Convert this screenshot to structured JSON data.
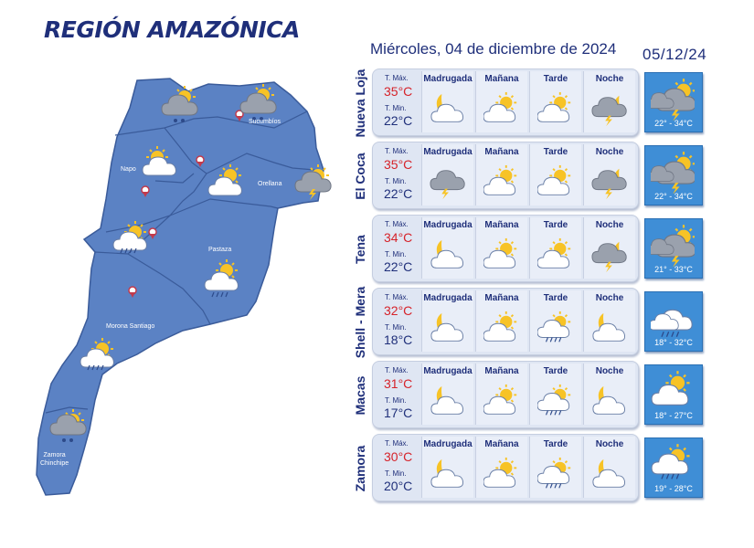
{
  "title": "REGIÓN AMAZÓNICA",
  "date_long": "Miércoles, 04 de diciembre de 2024",
  "date_short": "05/12/24",
  "labels": {
    "tmax": "T. Máx.",
    "tmin": "T. Min.",
    "periods": [
      "Madrugada",
      "Mañana",
      "Tarde",
      "Noche"
    ]
  },
  "map": {
    "provinces": [
      "Sucumbíos",
      "Napo",
      "Orellana",
      "Pastaza",
      "Morona Santiago",
      "Zamora\nChinchipe"
    ],
    "icons": [
      "cloud-drizzle-icon",
      "cloud-drizzle-icon",
      "sun-cloud-icon",
      "sun-cloud-icon",
      "storm-icon",
      "sun-cloud-rain-icon",
      "sun-cloud-rain-icon",
      "sun-cloud-rain-icon",
      "cloud-drizzle-icon"
    ]
  },
  "cities": [
    {
      "name": "Nueva Loja",
      "tmax": "35°C",
      "tmin": "22°C",
      "icons": [
        "moon-cloud-icon",
        "sun-cloud-icon",
        "sun-cloud-icon",
        "storm-night-icon"
      ],
      "day_icon": "storm-sun-icon",
      "range": "22° - 34°C"
    },
    {
      "name": "El Coca",
      "tmax": "35°C",
      "tmin": "22°C",
      "icons": [
        "storm-icon",
        "sun-cloud-icon",
        "sun-cloud-icon",
        "storm-night-icon"
      ],
      "day_icon": "storm-sun-icon",
      "range": "22° - 34°C"
    },
    {
      "name": "Tena",
      "tmax": "34°C",
      "tmin": "22°C",
      "icons": [
        "moon-cloud-icon",
        "sun-cloud-icon",
        "sun-cloud-icon",
        "storm-night-icon"
      ],
      "day_icon": "storm-sun-icon",
      "range": "21° - 33°C"
    },
    {
      "name": "Shell - Mera",
      "tmax": "32°C",
      "tmin": "18°C",
      "icons": [
        "moon-cloud-icon",
        "sun-cloud-icon",
        "sun-cloud-rain-icon",
        "moon-cloud-icon"
      ],
      "day_icon": "cloud-rain-icon",
      "range": "18° - 32°C"
    },
    {
      "name": "Macas",
      "tmax": "31°C",
      "tmin": "17°C",
      "icons": [
        "moon-cloud-icon",
        "sun-cloud-icon",
        "sun-cloud-rain-icon",
        "moon-cloud-icon"
      ],
      "day_icon": "sun-cloud-icon",
      "range": "18° - 27°C"
    },
    {
      "name": "Zamora",
      "tmax": "30°C",
      "tmin": "20°C",
      "icons": [
        "moon-cloud-icon",
        "sun-cloud-icon",
        "sun-cloud-rain-icon",
        "moon-cloud-icon"
      ],
      "day_icon": "sun-cloud-rain-icon",
      "range": "19° - 28°C"
    }
  ]
}
